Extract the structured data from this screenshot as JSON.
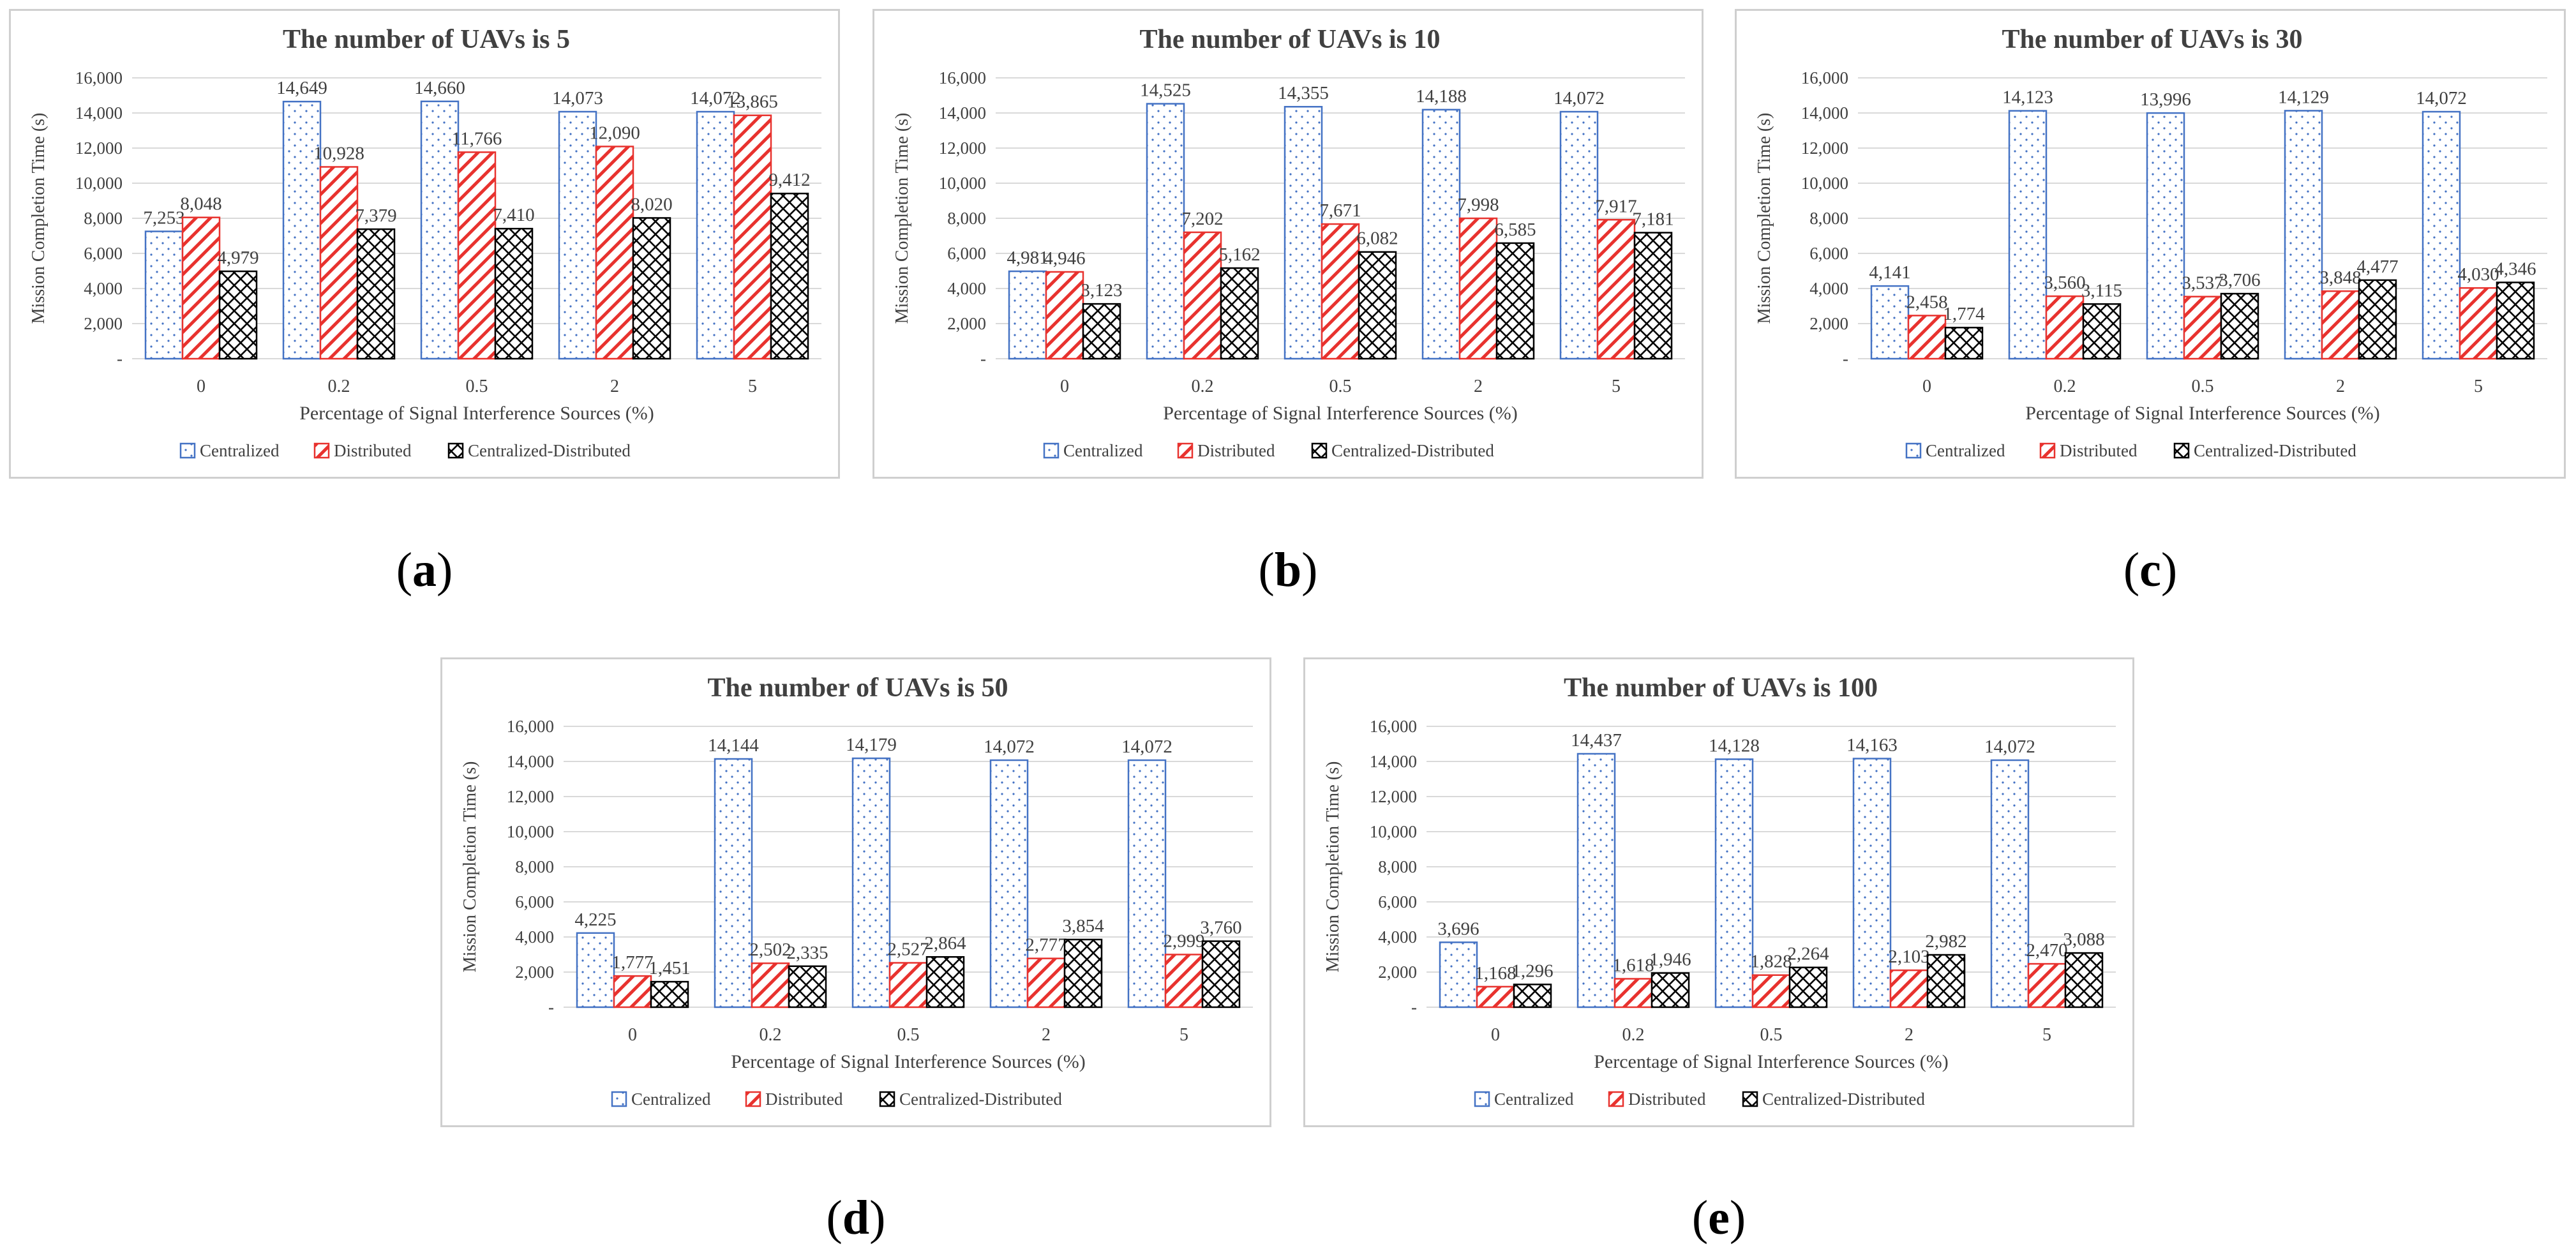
{
  "legend": [
    "Centralized",
    "Distributed",
    "Centralized-Distributed"
  ],
  "colors": {
    "centralized": "#4472c4",
    "distributed": "#e8322e",
    "centralized_distributed": "#000000",
    "grid": "#d9d9d9",
    "text": "#404040"
  },
  "captions": [
    "a",
    "b",
    "c",
    "d",
    "e"
  ],
  "chart_data": [
    {
      "type": "bar",
      "title": "The number of UAVs is 5",
      "xlabel": "Percentage of Signal Interference Sources (%)",
      "ylabel": "Mission Completion Time (s)",
      "categories": [
        "0",
        "0.2",
        "0.5",
        "2",
        "5"
      ],
      "ylim": [
        0,
        16000
      ],
      "yticks": [
        "-",
        "2,000",
        "4,000",
        "6,000",
        "8,000",
        "10,000",
        "12,000",
        "14,000",
        "16,000"
      ],
      "series": [
        {
          "name": "Centralized",
          "values": [
            7253,
            14649,
            14660,
            14073,
            14072
          ],
          "labels": [
            "7,253",
            "14,649",
            "14,660",
            "14,073",
            "14,072"
          ]
        },
        {
          "name": "Distributed",
          "values": [
            8048,
            10928,
            11766,
            12090,
            13865
          ],
          "labels": [
            "8,048",
            "10,928",
            "11,766",
            "12,090",
            "13,865"
          ]
        },
        {
          "name": "Centralized-Distributed",
          "values": [
            4979,
            7379,
            7410,
            8020,
            9412
          ],
          "labels": [
            "4,979",
            "7,379",
            "7,410",
            "8,020",
            "9,412"
          ]
        }
      ]
    },
    {
      "type": "bar",
      "title": "The number of UAVs is 10",
      "xlabel": "Percentage of Signal Interference Sources (%)",
      "ylabel": "Mission Completion Time (s)",
      "categories": [
        "0",
        "0.2",
        "0.5",
        "2",
        "5"
      ],
      "ylim": [
        0,
        16000
      ],
      "yticks": [
        "-",
        "2,000",
        "4,000",
        "6,000",
        "8,000",
        "10,000",
        "12,000",
        "14,000",
        "16,000"
      ],
      "series": [
        {
          "name": "Centralized",
          "values": [
            4981,
            14525,
            14355,
            14188,
            14072
          ],
          "labels": [
            "4,981",
            "14,525",
            "14,355",
            "14,188",
            "14,072"
          ]
        },
        {
          "name": "Distributed",
          "values": [
            4946,
            7202,
            7671,
            7998,
            7917
          ],
          "labels": [
            "4,946",
            "7,202",
            "7,671",
            "7,998",
            "7,917"
          ]
        },
        {
          "name": "Centralized-Distributed",
          "values": [
            3123,
            5162,
            6082,
            6585,
            7181
          ],
          "labels": [
            "3,123",
            "5,162",
            "6,082",
            "6,585",
            "7,181"
          ]
        }
      ]
    },
    {
      "type": "bar",
      "title": "The number of UAVs is 30",
      "xlabel": "Percentage of Signal Interference Sources (%)",
      "ylabel": "Mission Completion Time (s)",
      "categories": [
        "0",
        "0.2",
        "0.5",
        "2",
        "5"
      ],
      "ylim": [
        0,
        16000
      ],
      "yticks": [
        "-",
        "2,000",
        "4,000",
        "6,000",
        "8,000",
        "10,000",
        "12,000",
        "14,000",
        "16,000"
      ],
      "series": [
        {
          "name": "Centralized",
          "values": [
            4141,
            14123,
            13996,
            14129,
            14072
          ],
          "labels": [
            "4,141",
            "14,123",
            "13,996",
            "14,129",
            "14,072"
          ]
        },
        {
          "name": "Distributed",
          "values": [
            2458,
            3560,
            3537,
            3848,
            4030
          ],
          "labels": [
            "2,458",
            "3,560",
            "3,537",
            "3,848",
            "4,030"
          ]
        },
        {
          "name": "Centralized-Distributed",
          "values": [
            1774,
            3115,
            3706,
            4477,
            4346
          ],
          "labels": [
            "1,774",
            "3,115",
            "3,706",
            "4,477",
            "4,346"
          ]
        }
      ]
    },
    {
      "type": "bar",
      "title": "The number of UAVs is 50",
      "xlabel": "Percentage of Signal Interference Sources (%)",
      "ylabel": "Mission Completion Time (s)",
      "categories": [
        "0",
        "0.2",
        "0.5",
        "2",
        "5"
      ],
      "ylim": [
        0,
        16000
      ],
      "yticks": [
        "-",
        "2,000",
        "4,000",
        "6,000",
        "8,000",
        "10,000",
        "12,000",
        "14,000",
        "16,000"
      ],
      "series": [
        {
          "name": "Centralized",
          "values": [
            4225,
            14144,
            14179,
            14072,
            14072
          ],
          "labels": [
            "4,225",
            "14,144",
            "14,179",
            "14,072",
            "14,072"
          ]
        },
        {
          "name": "Distributed",
          "values": [
            1777,
            2502,
            2527,
            2777,
            2999
          ],
          "labels": [
            "1,777",
            "2,502",
            "2,527",
            "2,777",
            "2,999"
          ]
        },
        {
          "name": "Centralized-Distributed",
          "values": [
            1451,
            2335,
            2864,
            3854,
            3760
          ],
          "labels": [
            "1,451",
            "2,335",
            "2,864",
            "3,854",
            "3,760"
          ]
        }
      ]
    },
    {
      "type": "bar",
      "title": "The number of UAVs is 100",
      "xlabel": "Percentage of Signal Interference Sources (%)",
      "ylabel": "Mission Completion Time (s)",
      "categories": [
        "0",
        "0.2",
        "0.5",
        "2",
        "5"
      ],
      "ylim": [
        0,
        16000
      ],
      "yticks": [
        "-",
        "2,000",
        "4,000",
        "6,000",
        "8,000",
        "10,000",
        "12,000",
        "14,000",
        "16,000"
      ],
      "series": [
        {
          "name": "Centralized",
          "values": [
            3696,
            14437,
            14128,
            14163,
            14072
          ],
          "labels": [
            "3,696",
            "14,437",
            "14,128",
            "14,163",
            "14,072"
          ]
        },
        {
          "name": "Distributed",
          "values": [
            1168,
            1618,
            1828,
            2103,
            2470
          ],
          "labels": [
            "1,168",
            "1,618",
            "1,828",
            "2,103",
            "2,470"
          ]
        },
        {
          "name": "Centralized-Distributed",
          "values": [
            1296,
            1946,
            2264,
            2982,
            3088
          ],
          "labels": [
            "1,296",
            "1,946",
            "2,264",
            "2,982",
            "3,088"
          ]
        }
      ]
    }
  ]
}
